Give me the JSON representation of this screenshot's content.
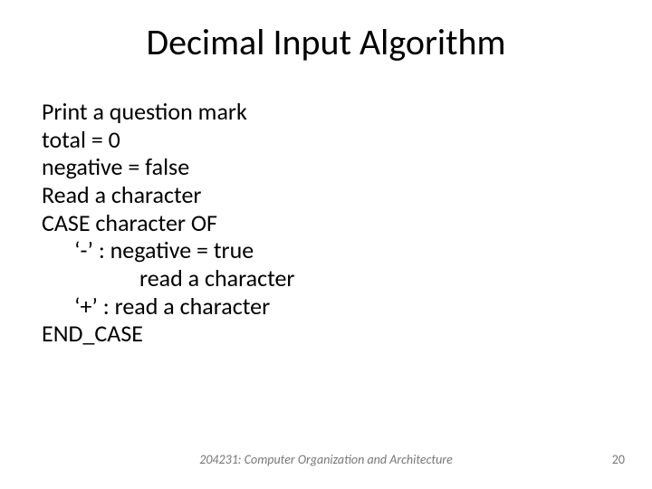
{
  "slide": {
    "title": "Decimal Input Algorithm",
    "title_fontsize": 40,
    "body_fontsize": 26,
    "body_lines": [
      {
        "text": "Print a question mark",
        "indent": 0
      },
      {
        "text": "total = 0",
        "indent": 0
      },
      {
        "text": "negative = false",
        "indent": 0
      },
      {
        "text": "Read a character",
        "indent": 0
      },
      {
        "text": "CASE  character  OF",
        "indent": 0
      },
      {
        "text": "‘-’   :  negative = true",
        "indent": 1
      },
      {
        "text": "read a character",
        "indent": 2
      },
      {
        "text": "‘+’  :  read a character",
        "indent": 1
      },
      {
        "text": "END_CASE",
        "indent": 0
      }
    ],
    "footer": "204231: Computer Organization and Architecture",
    "footer_fontsize": 14,
    "page_number": "20",
    "colors": {
      "background": "#ffffff",
      "text": "#000000",
      "footer_text": "#777777"
    }
  }
}
